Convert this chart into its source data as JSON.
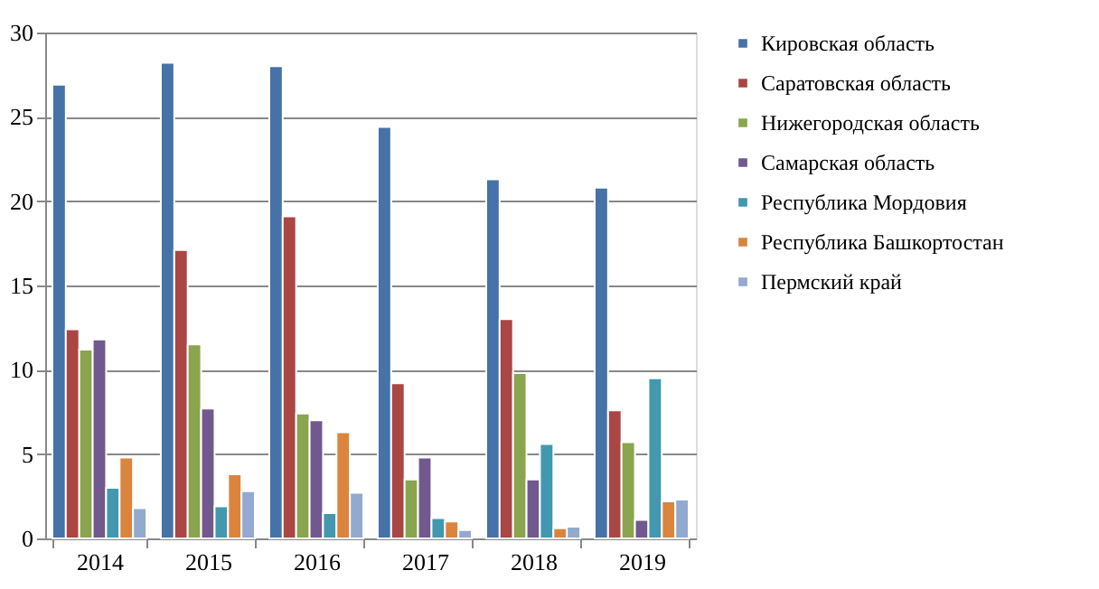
{
  "chart_data": {
    "type": "bar",
    "categories": [
      "2014",
      "2015",
      "2016",
      "2017",
      "2018",
      "2019"
    ],
    "series": [
      {
        "name": "Кировская область",
        "color": "#4572a7",
        "values": [
          26.9,
          28.2,
          28.0,
          24.4,
          21.3,
          20.8
        ]
      },
      {
        "name": "Саратовская область",
        "color": "#aa4643",
        "values": [
          12.4,
          17.1,
          19.1,
          9.2,
          13.0,
          7.6
        ]
      },
      {
        "name": "Нижегородская область",
        "color": "#89a54e",
        "values": [
          11.2,
          11.5,
          7.4,
          3.5,
          9.8,
          5.7
        ]
      },
      {
        "name": "Самарская область",
        "color": "#71588f",
        "values": [
          11.8,
          7.7,
          7.0,
          4.8,
          3.5,
          1.1
        ]
      },
      {
        "name": "Республика Мордовия",
        "color": "#4198af",
        "values": [
          3.0,
          1.9,
          1.5,
          1.2,
          5.6,
          9.5
        ]
      },
      {
        "name": "Республика Башкортостан",
        "color": "#db843d",
        "values": [
          4.8,
          3.8,
          6.3,
          1.0,
          0.6,
          2.2
        ]
      },
      {
        "name": "Пермский край",
        "color": "#93a9cf",
        "values": [
          1.8,
          2.8,
          2.7,
          0.5,
          0.7,
          2.3
        ]
      }
    ],
    "ylim": [
      0,
      30
    ],
    "yticks": [
      0,
      5,
      10,
      15,
      20,
      25,
      30
    ],
    "grid": "y",
    "legend": "right"
  }
}
